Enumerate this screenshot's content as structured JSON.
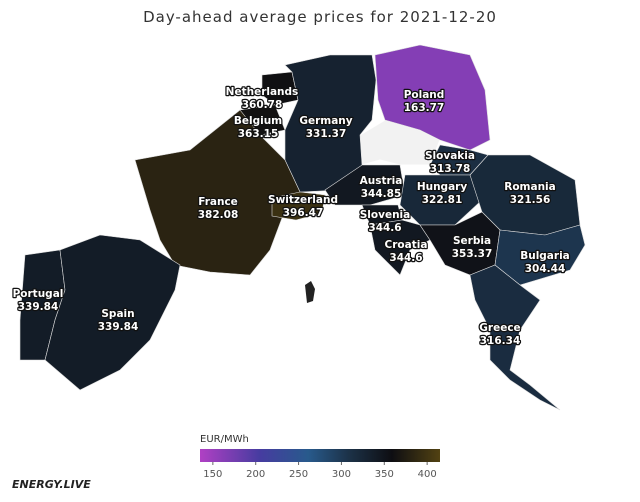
{
  "title": "Day-ahead average prices for 2021-12-20",
  "regions": [
    {
      "name": "Netherlands",
      "value": 360.78
    },
    {
      "name": "Belgium",
      "value": 363.15
    },
    {
      "name": "Germany",
      "value": 331.37
    },
    {
      "name": "Poland",
      "value": 163.77
    },
    {
      "name": "France",
      "value": 382.08
    },
    {
      "name": "Switzerland",
      "value": 396.47
    },
    {
      "name": "Slovakia",
      "value": 313.78
    },
    {
      "name": "Austria",
      "value": 344.85
    },
    {
      "name": "Hungary",
      "value": 322.81
    },
    {
      "name": "Romania",
      "value": 321.56
    },
    {
      "name": "Slovenia",
      "value": 344.6
    },
    {
      "name": "Croatia",
      "value": 344.6
    },
    {
      "name": "Serbia",
      "value": 353.37
    },
    {
      "name": "Bulgaria",
      "value": 304.44
    },
    {
      "name": "Portugal",
      "value": 339.84
    },
    {
      "name": "Spain",
      "value": 339.84
    },
    {
      "name": "Greece",
      "value": 316.34
    }
  ],
  "colorbar": {
    "label": "EUR/MWh",
    "lim": [
      135,
      415
    ],
    "ticks": [
      150,
      200,
      250,
      300,
      350,
      400
    ]
  },
  "logo": "ENERGY.LIVE"
}
